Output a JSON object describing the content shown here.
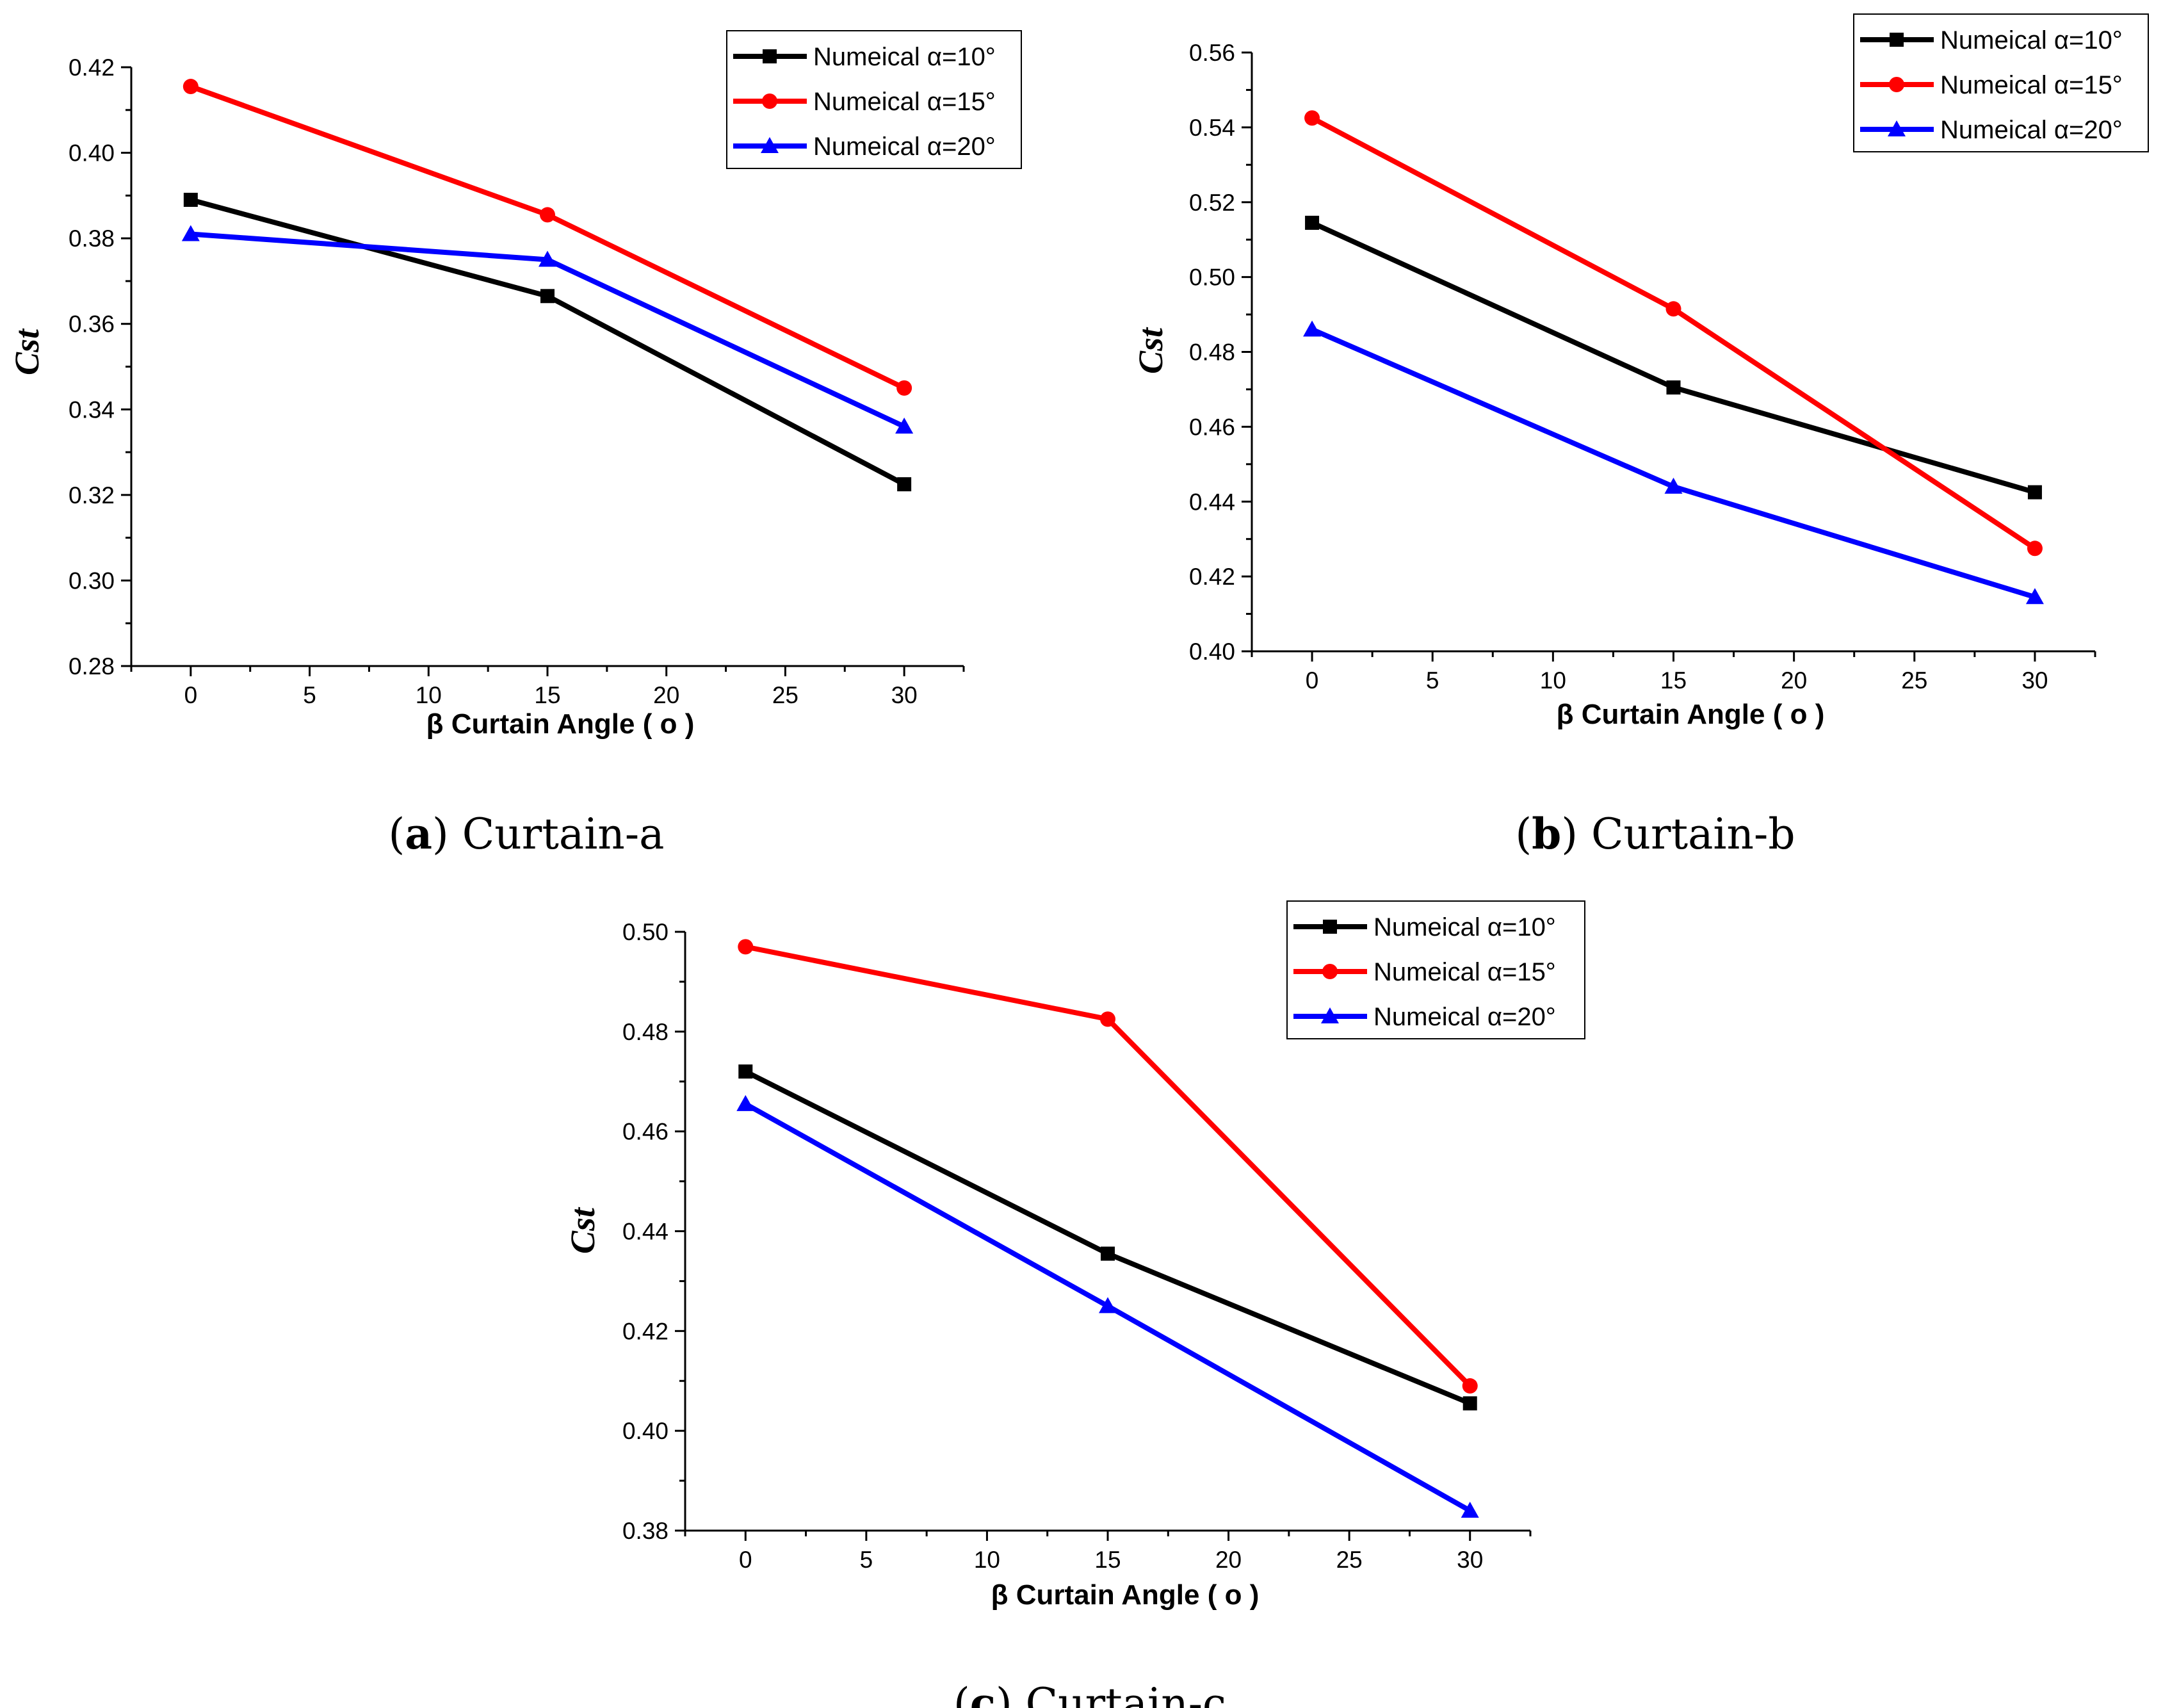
{
  "colors": {
    "series_1": "#000000",
    "series_2": "#ff0000",
    "series_3": "#0000ff"
  },
  "chart_data": [
    {
      "type": "line",
      "caption_letter": "a",
      "caption_text": "Curtain-a",
      "xlabel": "β  Curtain Angle ( o )",
      "ylabel": "Cst",
      "xlim": [
        -2.5,
        32.5
      ],
      "ylim": [
        0.28,
        0.42
      ],
      "xticks": [
        0,
        5,
        10,
        15,
        20,
        25,
        30
      ],
      "yticks": [
        0.28,
        0.3,
        0.32,
        0.34,
        0.36,
        0.38,
        0.4,
        0.42
      ],
      "ytick_labels": [
        "0.28",
        "0.30",
        "0.32",
        "0.34",
        "0.36",
        "0.38",
        "0.40",
        "0.42"
      ],
      "legend_position": "top-right",
      "x": [
        0,
        15,
        30
      ],
      "series": [
        {
          "name": "Numeical α=10°",
          "marker": "square",
          "color": "#000000",
          "values": [
            0.389,
            0.3665,
            0.3225
          ]
        },
        {
          "name": "Numeical α=15°",
          "marker": "circle",
          "color": "#ff0000",
          "values": [
            0.4155,
            0.3855,
            0.345
          ]
        },
        {
          "name": "Numeical α=20°",
          "marker": "triangle",
          "color": "#0000ff",
          "values": [
            0.381,
            0.375,
            0.336
          ]
        }
      ]
    },
    {
      "type": "line",
      "caption_letter": "b",
      "caption_text": "Curtain-b",
      "xlabel": "β  Curtain Angle ( o )",
      "ylabel": "Cst",
      "xlim": [
        -2.5,
        32.5
      ],
      "ylim": [
        0.4,
        0.56
      ],
      "xticks": [
        0,
        5,
        10,
        15,
        20,
        25,
        30
      ],
      "yticks": [
        0.4,
        0.42,
        0.44,
        0.46,
        0.48,
        0.5,
        0.52,
        0.54,
        0.56
      ],
      "ytick_labels": [
        "0.40",
        "0.42",
        "0.44",
        "0.46",
        "0.48",
        "0.50",
        "0.52",
        "0.54",
        "0.56"
      ],
      "legend_position": "top-right",
      "x": [
        0,
        15,
        30
      ],
      "series": [
        {
          "name": "Numeical α=10°",
          "marker": "square",
          "color": "#000000",
          "values": [
            0.5145,
            0.4705,
            0.4425
          ]
        },
        {
          "name": "Numeical α=15°",
          "marker": "circle",
          "color": "#ff0000",
          "values": [
            0.5425,
            0.4915,
            0.4275
          ]
        },
        {
          "name": "Numeical α=20°",
          "marker": "triangle",
          "color": "#0000ff",
          "values": [
            0.486,
            0.444,
            0.4145
          ]
        }
      ]
    },
    {
      "type": "line",
      "caption_letter": "c",
      "caption_text": "Curtain-c",
      "xlabel": "β  Curtain Angle ( o )",
      "ylabel": "Cst",
      "xlim": [
        -2.5,
        32.5
      ],
      "ylim": [
        0.38,
        0.5
      ],
      "xticks": [
        0,
        5,
        10,
        15,
        20,
        25,
        30
      ],
      "yticks": [
        0.38,
        0.4,
        0.42,
        0.44,
        0.46,
        0.48,
        0.5
      ],
      "ytick_labels": [
        "0.38",
        "0.40",
        "0.42",
        "0.44",
        "0.46",
        "0.48",
        "0.50"
      ],
      "legend_position": "top-right",
      "x": [
        0,
        15,
        30
      ],
      "series": [
        {
          "name": "Numeical α=10°",
          "marker": "square",
          "color": "#000000",
          "values": [
            0.472,
            0.4355,
            0.4055
          ]
        },
        {
          "name": "Numeical α=15°",
          "marker": "circle",
          "color": "#ff0000",
          "values": [
            0.497,
            0.4825,
            0.409
          ]
        },
        {
          "name": "Numeical α=20°",
          "marker": "triangle",
          "color": "#0000ff",
          "values": [
            0.4655,
            0.425,
            0.384
          ]
        }
      ]
    }
  ]
}
